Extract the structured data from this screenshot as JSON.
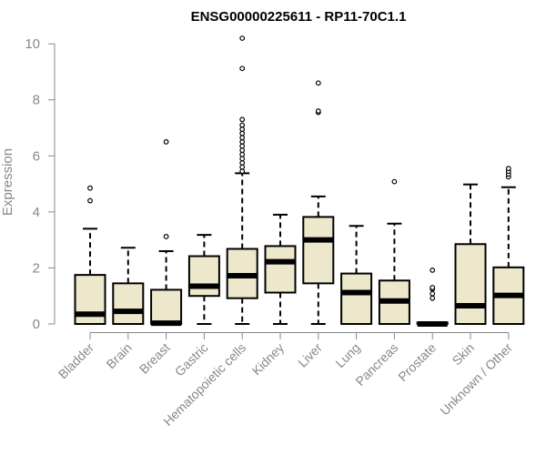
{
  "chart_data": {
    "type": "boxplot",
    "title": "ENSG00000225611 - RP11-70C1.1",
    "xlabel": "",
    "ylabel": "Expression",
    "ylim": [
      0,
      10.2
    ],
    "yticks": [
      0,
      2,
      4,
      6,
      8,
      10
    ],
    "box_color": "#EDE7CC",
    "grid": false,
    "categories": [
      "Bladder",
      "Brain",
      "Breast",
      "Gastric",
      "Hematopoietic cells",
      "Kidney",
      "Liver",
      "Lung",
      "Pancreas",
      "Prostate",
      "Skin",
      "Unknown / Other"
    ],
    "boxes": [
      {
        "category": "Bladder",
        "whisker_low": 0,
        "q1": 0,
        "median": 0.35,
        "q3": 1.75,
        "whisker_high": 3.4,
        "outliers": [
          4.4,
          4.85
        ]
      },
      {
        "category": "Brain",
        "whisker_low": 0,
        "q1": 0,
        "median": 0.45,
        "q3": 1.45,
        "whisker_high": 2.72,
        "outliers": []
      },
      {
        "category": "Breast",
        "whisker_low": 0,
        "q1": 0,
        "median": 0.03,
        "q3": 1.22,
        "whisker_high": 2.6,
        "outliers": [
          3.12,
          6.5
        ]
      },
      {
        "category": "Gastric",
        "whisker_low": 0,
        "q1": 1.0,
        "median": 1.35,
        "q3": 2.42,
        "whisker_high": 3.18,
        "outliers": []
      },
      {
        "category": "Hematopoietic cells",
        "whisker_low": 0,
        "q1": 0.92,
        "median": 1.72,
        "q3": 2.68,
        "whisker_high": 5.38,
        "outliers": [
          5.45,
          5.6,
          5.75,
          5.9,
          6.05,
          6.2,
          6.35,
          6.5,
          6.65,
          6.8,
          6.95,
          7.1,
          7.3,
          9.12,
          10.2
        ]
      },
      {
        "category": "Kidney",
        "whisker_low": 0,
        "q1": 1.12,
        "median": 2.22,
        "q3": 2.78,
        "whisker_high": 3.9,
        "outliers": []
      },
      {
        "category": "Liver",
        "whisker_low": 0,
        "q1": 1.45,
        "median": 3.0,
        "q3": 3.82,
        "whisker_high": 4.55,
        "outliers": [
          7.55,
          7.6,
          8.6
        ]
      },
      {
        "category": "Lung",
        "whisker_low": 0,
        "q1": 0,
        "median": 1.12,
        "q3": 1.8,
        "whisker_high": 3.5,
        "outliers": []
      },
      {
        "category": "Pancreas",
        "whisker_low": 0,
        "q1": 0,
        "median": 0.82,
        "q3": 1.55,
        "whisker_high": 3.58,
        "outliers": [
          5.08
        ]
      },
      {
        "category": "Prostate",
        "whisker_low": 0,
        "q1": 0,
        "median": 0.0,
        "q3": 0.05,
        "whisker_high": 0.05,
        "outliers": [
          0.92,
          1.08,
          1.25,
          1.3,
          1.92
        ]
      },
      {
        "category": "Skin",
        "whisker_low": 0,
        "q1": 0,
        "median": 0.65,
        "q3": 2.85,
        "whisker_high": 4.98,
        "outliers": []
      },
      {
        "category": "Unknown / Other",
        "whisker_low": 0,
        "q1": 0,
        "median": 1.02,
        "q3": 2.02,
        "whisker_high": 4.88,
        "outliers": [
          5.25,
          5.35,
          5.45,
          5.55
        ]
      }
    ]
  }
}
